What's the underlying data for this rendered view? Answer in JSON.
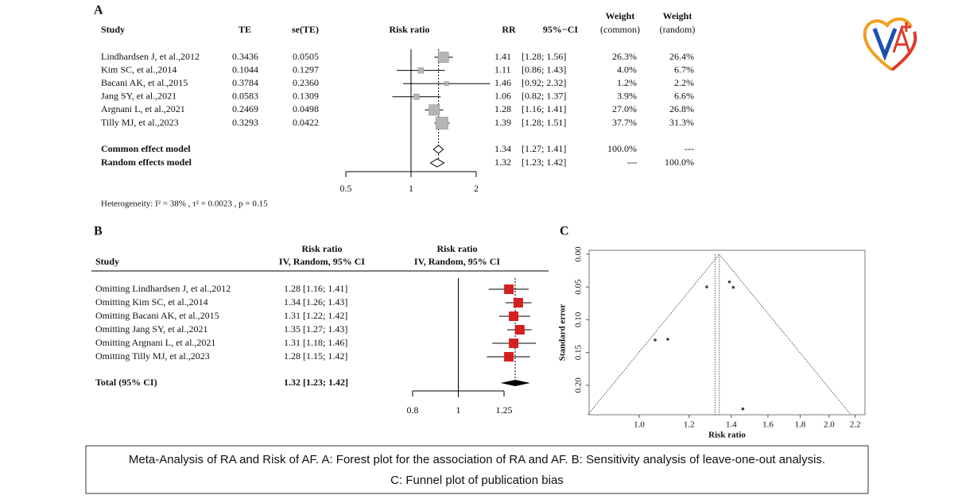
{
  "chart_data": [
    {
      "type": "forest",
      "panel": "A",
      "headers": {
        "study": "Study",
        "te": "TE",
        "se": "se(TE)",
        "plot": "Risk ratio",
        "rr": "RR",
        "ci": "95%−CI",
        "weight_common": [
          "Weight",
          "(common)"
        ],
        "weight_random": [
          "Weight",
          "(random)"
        ]
      },
      "categories": [
        "Lindhardsen J, et al.,2012",
        "Kim SC, et al.,2014",
        "Bacani AK, et al.,2015",
        "Jang SY, et al.,2021",
        "Argnani L, et al.,2021",
        "Tilly MJ, et al.,2023",
        "Common effect model",
        "Random effects model"
      ],
      "te": {
        "values": [
          0.3436,
          0.1044,
          0.3784,
          0.0583,
          0.2469,
          0.3293
        ]
      },
      "se": {
        "values": [
          0.0505,
          0.1297,
          0.236,
          0.1309,
          0.0498,
          0.0422
        ],
        "value_labels": [
          "0.0505",
          "0.1297",
          "0.2360",
          "0.1309",
          "0.0498",
          "0.0422"
        ]
      },
      "rr": {
        "values": [
          1.41,
          1.11,
          1.46,
          1.06,
          1.28,
          1.39,
          1.34,
          1.32
        ],
        "ci_low": [
          1.28,
          0.86,
          0.92,
          0.82,
          1.16,
          1.28,
          1.27,
          1.23
        ],
        "ci_high": [
          1.56,
          1.43,
          2.32,
          1.37,
          1.41,
          1.51,
          1.41,
          1.42
        ],
        "ci_labels": [
          "[1.28; 1.56]",
          "[0.86; 1.43]",
          "[0.92; 2.32]",
          "[0.82; 1.37]",
          "[1.16; 1.41]",
          "[1.28; 1.51]",
          "[1.27; 1.41]",
          "[1.23; 1.42]"
        ]
      },
      "weight_common": {
        "values": [
          26.3,
          4.0,
          1.2,
          3.9,
          27.0,
          37.7,
          100,
          null
        ],
        "value_labels": [
          "26.3%",
          "4.0%",
          "1.2%",
          "3.9%",
          "27.0%",
          "37.7%",
          "100.0%",
          "---"
        ]
      },
      "weight_random": {
        "values": [
          26.4,
          6.7,
          2.2,
          6.6,
          26.8,
          31.3,
          null,
          100
        ],
        "value_labels": [
          "26.4%",
          "6.7%",
          "2.2%",
          "6.6%",
          "26.8%",
          "31.3%",
          "---",
          "100.0%"
        ]
      },
      "xlim": [
        0.5,
        2
      ],
      "xticks": [
        0.5,
        1,
        2
      ],
      "log_scale": true,
      "color": "#b5b5b5",
      "heterogeneity": "Heterogeneity:  I² = 38% , τ² = 0.0023 , p = 0.15"
    },
    {
      "type": "forest",
      "panel": "B",
      "headers": {
        "study": "Study",
        "rr": [
          "Risk ratio",
          "IV, Random, 95% CI"
        ],
        "plot": [
          "Risk ratio",
          "IV, Random, 95% CI"
        ]
      },
      "categories": [
        "Omitting Lindhardsen J, et al.,2012",
        "Omitting Kim SC, et al.,2014",
        "Omitting Bacani AK, et al.,2015",
        "Omitting Jang SY, et al.,2021",
        "Omitting Argnani L, et al.,2021",
        "Omitting Tilly MJ, et al.,2023",
        "Total (95% CI)"
      ],
      "rr": {
        "values": [
          1.28,
          1.34,
          1.31,
          1.35,
          1.31,
          1.28,
          1.32
        ],
        "ci_low": [
          1.16,
          1.26,
          1.22,
          1.27,
          1.18,
          1.15,
          1.23
        ],
        "ci_high": [
          1.41,
          1.43,
          1.42,
          1.43,
          1.46,
          1.42,
          1.42
        ],
        "value_labels": [
          "1.28 [1.16; 1.41]",
          "1.34 [1.26; 1.43]",
          "1.31 [1.22; 1.42]",
          "1.35 [1.27; 1.43]",
          "1.31 [1.18; 1.46]",
          "1.28 [1.15; 1.42]",
          "1.32 [1.23; 1.42]"
        ]
      },
      "xlim": [
        0.8,
        1.25
      ],
      "xticks": [
        0.8,
        1,
        1.25
      ],
      "log_scale": true,
      "color": "#d42020"
    },
    {
      "type": "scatter",
      "panel": "C",
      "x": [
        1.41,
        1.11,
        1.46,
        1.06,
        1.28,
        1.39
      ],
      "values": [
        0.0505,
        0.1297,
        0.236,
        0.1309,
        0.0498,
        0.0422
      ],
      "reference": [
        1.34,
        1.32
      ],
      "xlim": [
        0.833,
        2.28
      ],
      "xticks": [
        {
          "value": 1,
          "label": "1.0"
        },
        1.2,
        1.4,
        1.6,
        1.8,
        {
          "value": 2,
          "label": "2.0"
        },
        2.2
      ],
      "ylim": [
        0.245,
        -0.006
      ],
      "yticks": [
        {
          "value": 0,
          "label": "0.00"
        },
        {
          "value": 0.05,
          "label": "0.05"
        },
        {
          "value": 0.1,
          "label": "0.10"
        },
        {
          "value": 0.15,
          "label": "0.15"
        },
        {
          "value": 0.2,
          "label": "0.20"
        }
      ],
      "log_x": true,
      "xlabel": "Risk ratio",
      "ylabel": "Standard error",
      "color": "#444444"
    }
  ],
  "caption": [
    "Meta-Analysis of RA and Risk of AF. A: Forest plot for the association of RA and AF. B: Sensitivity analysis of leave-one-out analysis.",
    "C: Funnel plot of publication bias"
  ]
}
